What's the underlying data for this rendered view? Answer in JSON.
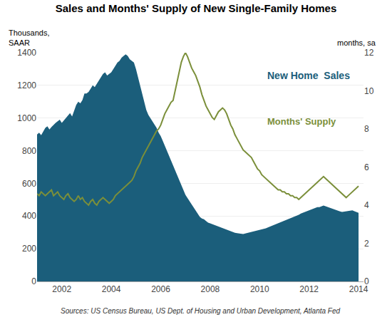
{
  "chart_data": {
    "type": "line",
    "title": "Sales and Months' Supply of New Single-Family Homes",
    "ylabel": [
      "Thousands,",
      "SAAR"
    ],
    "y2label": "months, sa",
    "source": "Sources: US Census Bureau, US Dept. of Housing and Urban Development, Atlanta Fed",
    "background_color": "#ffffff",
    "grid": true,
    "xlim": [
      2001.0,
      2014.2
    ],
    "xticks": [
      2002,
      2004,
      2006,
      2008,
      2010,
      2012,
      2014
    ],
    "ylim": [
      0,
      1400
    ],
    "yticks": [
      0,
      200,
      400,
      600,
      800,
      1000,
      1200,
      1400
    ],
    "y2lim": [
      0,
      12
    ],
    "y2ticks": [
      0,
      2,
      4,
      6,
      8,
      10,
      12
    ],
    "x": [
      2001,
      2001.0833333333,
      2001.1666666667,
      2001.25,
      2001.3333333333,
      2001.4166666667,
      2001.5,
      2001.5833333333,
      2001.6666666667,
      2001.75,
      2001.8333333333,
      2001.9166666667,
      2002,
      2002.0833333333,
      2002.1666666667,
      2002.25,
      2002.3333333333,
      2002.4166666667,
      2002.5,
      2002.5833333333,
      2002.6666666667,
      2002.75,
      2002.8333333333,
      2002.9166666667,
      2003,
      2003.0833333333,
      2003.1666666667,
      2003.25,
      2003.3333333333,
      2003.4166666667,
      2003.5,
      2003.5833333333,
      2003.6666666667,
      2003.75,
      2003.8333333333,
      2003.9166666667,
      2004,
      2004.0833333333,
      2004.1666666667,
      2004.25,
      2004.3333333333,
      2004.4166666667,
      2004.5,
      2004.5833333333,
      2004.6666666667,
      2004.75,
      2004.8333333333,
      2004.9166666667,
      2005,
      2005.0833333333,
      2005.1666666667,
      2005.25,
      2005.3333333333,
      2005.4166666667,
      2005.5,
      2005.5833333333,
      2005.6666666667,
      2005.75,
      2005.8333333333,
      2005.9166666667,
      2006,
      2006.0833333333,
      2006.1666666667,
      2006.25,
      2006.3333333333,
      2006.4166666667,
      2006.5,
      2006.5833333333,
      2006.6666666667,
      2006.75,
      2006.8333333333,
      2006.9166666667,
      2007,
      2007.0833333333,
      2007.1666666667,
      2007.25,
      2007.3333333333,
      2007.4166666667,
      2007.5,
      2007.5833333333,
      2007.6666666667,
      2007.75,
      2007.8333333333,
      2007.9166666667,
      2008,
      2008.0833333333,
      2008.1666666667,
      2008.25,
      2008.3333333333,
      2008.4166666667,
      2008.5,
      2008.5833333333,
      2008.6666666667,
      2008.75,
      2008.8333333333,
      2008.9166666667,
      2009,
      2009.0833333333,
      2009.1666666667,
      2009.25,
      2009.3333333333,
      2009.4166666667,
      2009.5,
      2009.5833333333,
      2009.6666666667,
      2009.75,
      2009.8333333333,
      2009.9166666667,
      2010,
      2010.0833333333,
      2010.1666666667,
      2010.25,
      2010.3333333333,
      2010.4166666667,
      2010.5,
      2010.5833333333,
      2010.6666666667,
      2010.75,
      2010.8333333333,
      2010.9166666667,
      2011,
      2011.0833333333,
      2011.1666666667,
      2011.25,
      2011.3333333333,
      2011.4166666667,
      2011.5,
      2011.5833333333,
      2011.6666666667,
      2011.75,
      2011.8333333333,
      2011.9166666667,
      2012,
      2012.0833333333,
      2012.1666666667,
      2012.25,
      2012.3333333333,
      2012.4166666667,
      2012.5,
      2012.5833333333,
      2012.6666666667,
      2012.75,
      2012.8333333333,
      2012.9166666667,
      2013,
      2013.0833333333,
      2013.1666666667,
      2013.25,
      2013.3333333333,
      2013.4166666667,
      2013.5,
      2013.5833333333,
      2013.6666666667,
      2013.75,
      2013.8333333333,
      2013.9166666667,
      2014
    ],
    "series": [
      {
        "name": "New Home  Sales",
        "type": "area",
        "color": "#1b5e7b",
        "values": [
          900,
          910,
          895,
          920,
          940,
          950,
          930,
          945,
          960,
          970,
          980,
          990,
          970,
          985,
          1000,
          1020,
          1030,
          1010,
          1050,
          1080,
          1100,
          1090,
          1110,
          1150,
          1150,
          1160,
          1180,
          1200,
          1190,
          1210,
          1230,
          1250,
          1270,
          1280,
          1260,
          1270,
          1280,
          1300,
          1320,
          1340,
          1350,
          1370,
          1380,
          1390,
          1380,
          1360,
          1350,
          1340,
          1300,
          1250,
          1200,
          1150,
          1100,
          1050,
          1020,
          1000,
          980,
          960,
          940,
          910,
          890,
          860,
          830,
          800,
          770,
          740,
          710,
          680,
          650,
          620,
          590,
          560,
          530,
          510,
          490,
          470,
          450,
          430,
          410,
          395,
          385,
          380,
          370,
          360,
          355,
          350,
          345,
          340,
          335,
          330,
          325,
          320,
          315,
          310,
          305,
          300,
          298,
          296,
          294,
          292,
          290,
          293,
          296,
          300,
          305,
          308,
          310,
          312,
          315,
          318,
          320,
          325,
          330,
          335,
          340,
          345,
          350,
          355,
          360,
          365,
          370,
          375,
          380,
          385,
          390,
          395,
          400,
          408,
          415,
          420,
          425,
          430,
          435,
          440,
          445,
          450,
          455,
          455,
          460,
          465,
          460,
          455,
          450,
          445,
          440,
          435,
          430,
          428,
          425,
          427,
          430,
          432,
          435,
          435,
          430,
          425,
          420
        ]
      },
      {
        "name": "Months' Supply",
        "type": "line",
        "axis": "y2",
        "color": "#7b8f3a",
        "values": [
          4.6,
          4.5,
          4.7,
          4.6,
          4.5,
          4.6,
          4.7,
          4.8,
          4.5,
          4.6,
          4.7,
          4.5,
          4.4,
          4.3,
          4.5,
          4.6,
          4.4,
          4.3,
          4.2,
          4.3,
          4.5,
          4.3,
          4.4,
          4.2,
          4.1,
          4.0,
          4.2,
          4.3,
          4.1,
          4.0,
          4.2,
          4.3,
          4.4,
          4.3,
          4.2,
          4.1,
          4.2,
          4.3,
          4.5,
          4.6,
          4.7,
          4.8,
          4.9,
          5.0,
          5.1,
          5.2,
          5.3,
          5.5,
          5.8,
          6.0,
          6.2,
          6.5,
          6.7,
          6.9,
          7.1,
          7.3,
          7.5,
          7.7,
          7.9,
          8.0,
          8.2,
          8.5,
          8.8,
          9.0,
          9.2,
          9.4,
          9.5,
          10.0,
          10.5,
          11.0,
          11.5,
          11.8,
          12.0,
          11.8,
          11.5,
          11.2,
          11.0,
          10.8,
          10.5,
          10.2,
          9.8,
          9.5,
          9.2,
          9.0,
          8.8,
          8.6,
          8.5,
          8.7,
          8.9,
          9.0,
          9.1,
          9.0,
          8.8,
          8.5,
          8.2,
          8.0,
          7.7,
          7.5,
          7.3,
          7.1,
          6.9,
          6.8,
          6.7,
          6.6,
          6.5,
          6.3,
          6.1,
          5.9,
          5.8,
          5.6,
          5.5,
          5.4,
          5.3,
          5.2,
          5.1,
          5.0,
          4.9,
          4.8,
          4.8,
          4.7,
          4.7,
          4.6,
          4.6,
          4.5,
          4.5,
          4.4,
          4.4,
          4.3,
          4.4,
          4.5,
          4.6,
          4.7,
          4.8,
          4.9,
          5.0,
          5.1,
          5.2,
          5.3,
          5.4,
          5.5,
          5.4,
          5.3,
          5.2,
          5.1,
          5.0,
          4.9,
          4.8,
          4.7,
          4.6,
          4.5,
          4.4,
          4.5,
          4.6,
          4.7,
          4.8,
          4.9,
          5.0
        ]
      }
    ]
  }
}
